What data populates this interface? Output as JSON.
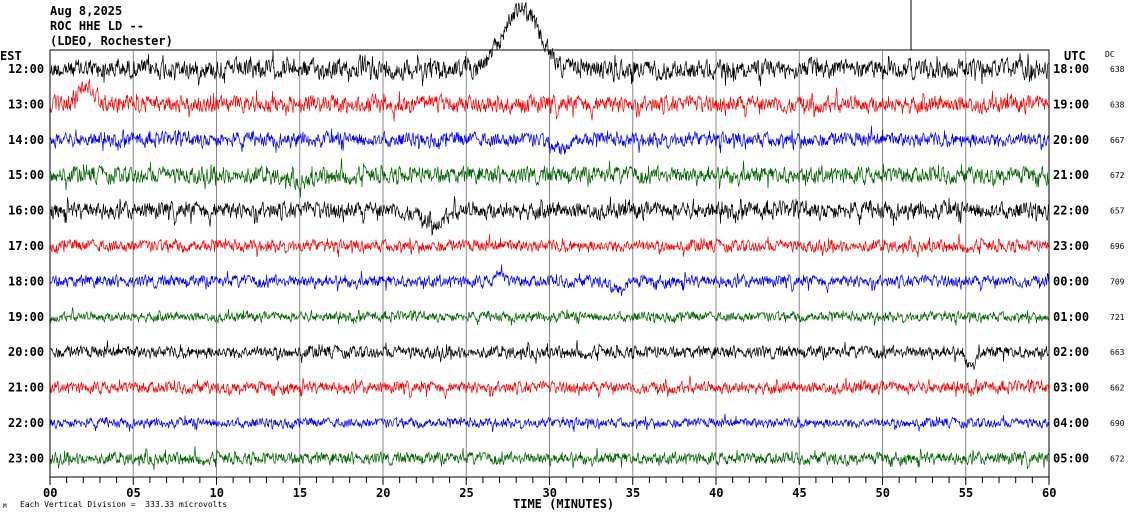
{
  "header": {
    "date": "Aug 8,2025",
    "station": "ROC HHE LD --",
    "network": "(LDEO, Rochester)"
  },
  "footer": {
    "scale_note": "Each Vertical Division =  333.33 microvolts",
    "mark": "M"
  },
  "chart_data": {
    "type": "line",
    "title": "ROC HHE LD -- helicorder",
    "xlabel": "TIME (MINUTES)",
    "xlim": [
      0,
      60
    ],
    "x_ticks": [
      "00",
      "05",
      "10",
      "15",
      "20",
      "25",
      "30",
      "35",
      "40",
      "45",
      "50",
      "55",
      "60"
    ],
    "left_axis_title": "EST",
    "right_axis_title": "UTC",
    "dc_title": "DC",
    "colors": [
      "#000000",
      "#ff0000",
      "#0000ff",
      "#006400"
    ],
    "rows": [
      {
        "est": "12:00",
        "utc": "18:00",
        "dc": "638",
        "amp": 8,
        "events": [
          {
            "t": 28.3,
            "a": -60,
            "w": 1.5
          }
        ]
      },
      {
        "est": "13:00",
        "utc": "19:00",
        "dc": "638",
        "amp": 7,
        "events": [
          {
            "t": 2.2,
            "a": -18,
            "w": 0.7
          }
        ]
      },
      {
        "est": "14:00",
        "utc": "20:00",
        "dc": "667",
        "amp": 6,
        "events": [
          {
            "t": 30.5,
            "a": 10,
            "w": 0.6
          }
        ]
      },
      {
        "est": "15:00",
        "utc": "21:00",
        "dc": "672",
        "amp": 7,
        "events": [
          {
            "t": 15,
            "a": 6,
            "w": 1
          }
        ]
      },
      {
        "est": "16:00",
        "utc": "22:00",
        "dc": "657",
        "amp": 7,
        "events": [
          {
            "t": 23,
            "a": 12,
            "w": 1
          }
        ]
      },
      {
        "est": "17:00",
        "utc": "23:00",
        "dc": "696",
        "amp": 5,
        "events": []
      },
      {
        "est": "18:00",
        "utc": "00:00",
        "dc": "709",
        "amp": 5,
        "events": [
          {
            "t": 34.2,
            "a": 8,
            "w": 0.5
          },
          {
            "t": 27,
            "a": -10,
            "w": 0.3
          }
        ]
      },
      {
        "est": "19:00",
        "utc": "01:00",
        "dc": "721",
        "amp": 4,
        "events": []
      },
      {
        "est": "20:00",
        "utc": "02:00",
        "dc": "663",
        "amp": 5,
        "events": [
          {
            "t": 55.3,
            "a": 12,
            "w": 0.4
          }
        ]
      },
      {
        "est": "21:00",
        "utc": "03:00",
        "dc": "662",
        "amp": 5,
        "events": []
      },
      {
        "est": "22:00",
        "utc": "04:00",
        "dc": "690",
        "amp": 4,
        "events": []
      },
      {
        "est": "23:00",
        "utc": "05:00",
        "dc": "672",
        "amp": 5,
        "events": []
      }
    ]
  }
}
